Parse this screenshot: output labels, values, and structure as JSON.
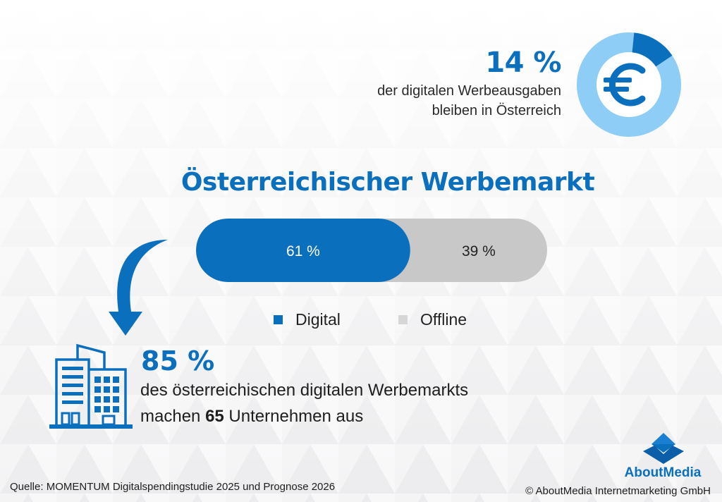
{
  "top_stat": {
    "value": "14 %",
    "line1": "der digitalen Werbeausgaben",
    "line2": "bleiben in Österreich",
    "icon": "euro-icon",
    "share": 0.14
  },
  "title": "Österreichischer Werbemarkt",
  "chart_data": {
    "type": "bar",
    "orientation": "horizontal-stacked",
    "categories": [
      "Digital",
      "Offline"
    ],
    "values": [
      61,
      39
    ],
    "data_labels": [
      "61 %",
      "39 %"
    ],
    "title": "Österreichischer Werbemarkt",
    "legend": {
      "position": "bottom",
      "entries": [
        "Digital",
        "Offline"
      ]
    },
    "colors": [
      "#0a6fbd",
      "#c8c8c8"
    ]
  },
  "bottom_stat": {
    "value": "85 %",
    "line1": "des österreichischen digitalen Werbemarkts",
    "line2_pre": "machen ",
    "line2_bold": "65",
    "line2_post": " Unternehmen aus",
    "icon": "building-icon"
  },
  "footer": {
    "source": "Quelle: MOMENTUM Digitalspendingstudie 2025 und Prognose 2026",
    "copyright": "© AboutMedia Internetmarketing GmbH",
    "logo_text": "AboutMedia"
  },
  "colors": {
    "brand_blue": "#0a6fbd",
    "light_blue": "#8dcdf6",
    "offline_gray": "#c8c8c8"
  }
}
